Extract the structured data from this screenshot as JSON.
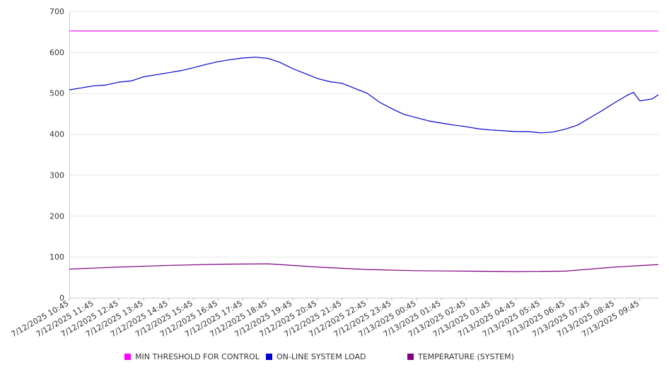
{
  "chart_data": {
    "type": "line",
    "title": "",
    "xlabel": "",
    "ylabel": "",
    "ylim": [
      0,
      700
    ],
    "yticks": [
      "0",
      "100",
      "200",
      "300",
      "400",
      "500",
      "600",
      "700"
    ],
    "grid": true,
    "legend_placement": "bottom",
    "x_labels": [
      "7/12/2025 10:45",
      "7/12/2025 11:45",
      "7/12/2025 12:45",
      "7/12/2025 13:45",
      "7/12/2025 14:45",
      "7/12/2025 15:45",
      "7/12/2025 16:45",
      "7/12/2025 17:45",
      "7/12/2025 18:45",
      "7/12/2025 19:45",
      "7/12/2025 20:45",
      "7/12/2025 21:45",
      "7/12/2025 22:45",
      "7/12/2025 23:45",
      "7/13/2025 00:45",
      "7/13/2025 01:45",
      "7/13/2025 02:45",
      "7/13/2025 03:45",
      "7/13/2025 04:45",
      "7/13/2025 05:45",
      "7/13/2025 06:45",
      "7/13/2025 07:45",
      "7/13/2025 08:45",
      "7/13/2025 09:45"
    ],
    "x_end": "7/13/2025 10:30",
    "series": [
      {
        "name": "MIN THRESHOLD FOR CONTROL",
        "color": "#ff00ff",
        "x": [
          "7/12/2025 10:45",
          "7/13/2025 10:30"
        ],
        "y": [
          652,
          652
        ]
      },
      {
        "name": "ON-LINE SYSTEM LOAD",
        "color": "#0000cc",
        "x": [
          "7/12/2025 10:45",
          "7/12/2025 11:15",
          "7/12/2025 11:45",
          "7/12/2025 12:15",
          "7/12/2025 12:45",
          "7/12/2025 13:15",
          "7/12/2025 13:45",
          "7/12/2025 14:15",
          "7/12/2025 14:45",
          "7/12/2025 15:15",
          "7/12/2025 15:45",
          "7/12/2025 16:15",
          "7/12/2025 16:45",
          "7/12/2025 17:15",
          "7/12/2025 17:45",
          "7/12/2025 18:15",
          "7/12/2025 18:45",
          "7/12/2025 19:15",
          "7/12/2025 19:45",
          "7/12/2025 20:15",
          "7/12/2025 20:45",
          "7/12/2025 21:15",
          "7/12/2025 21:45",
          "7/12/2025 22:15",
          "7/12/2025 22:45",
          "7/12/2025 23:15",
          "7/12/2025 23:45",
          "7/13/2025 00:15",
          "7/13/2025 00:45",
          "7/13/2025 01:15",
          "7/13/2025 01:45",
          "7/13/2025 02:15",
          "7/13/2025 02:45",
          "7/13/2025 03:15",
          "7/13/2025 03:45",
          "7/13/2025 04:15",
          "7/13/2025 04:45",
          "7/13/2025 05:15",
          "7/13/2025 05:45",
          "7/13/2025 06:15",
          "7/13/2025 06:45",
          "7/13/2025 07:15",
          "7/13/2025 07:45",
          "7/13/2025 08:15",
          "7/13/2025 08:45",
          "7/13/2025 09:15",
          "7/13/2025 09:30",
          "7/13/2025 09:45",
          "7/13/2025 10:15",
          "7/13/2025 10:30"
        ],
        "y": [
          508,
          513,
          518,
          520,
          527,
          530,
          540,
          545,
          550,
          555,
          562,
          570,
          577,
          582,
          586,
          588,
          585,
          575,
          560,
          548,
          536,
          528,
          524,
          512,
          500,
          478,
          462,
          448,
          440,
          432,
          427,
          422,
          418,
          413,
          410,
          408,
          406,
          406,
          403,
          405,
          412,
          422,
          440,
          458,
          477,
          495,
          502,
          481,
          486,
          496
        ]
      },
      {
        "name": "TEMPERATURE (SYSTEM)",
        "color": "#800080",
        "x": [
          "7/12/2025 10:45",
          "7/12/2025 12:45",
          "7/12/2025 14:45",
          "7/12/2025 16:45",
          "7/12/2025 18:45",
          "7/12/2025 20:45",
          "7/12/2025 22:45",
          "7/13/2025 00:45",
          "7/13/2025 02:45",
          "7/13/2025 04:45",
          "7/13/2025 06:45",
          "7/13/2025 08:45",
          "7/13/2025 10:30"
        ],
        "y": [
          70,
          75,
          79,
          82,
          83,
          75,
          69,
          66,
          65,
          64,
          65,
          75,
          81
        ]
      }
    ]
  }
}
